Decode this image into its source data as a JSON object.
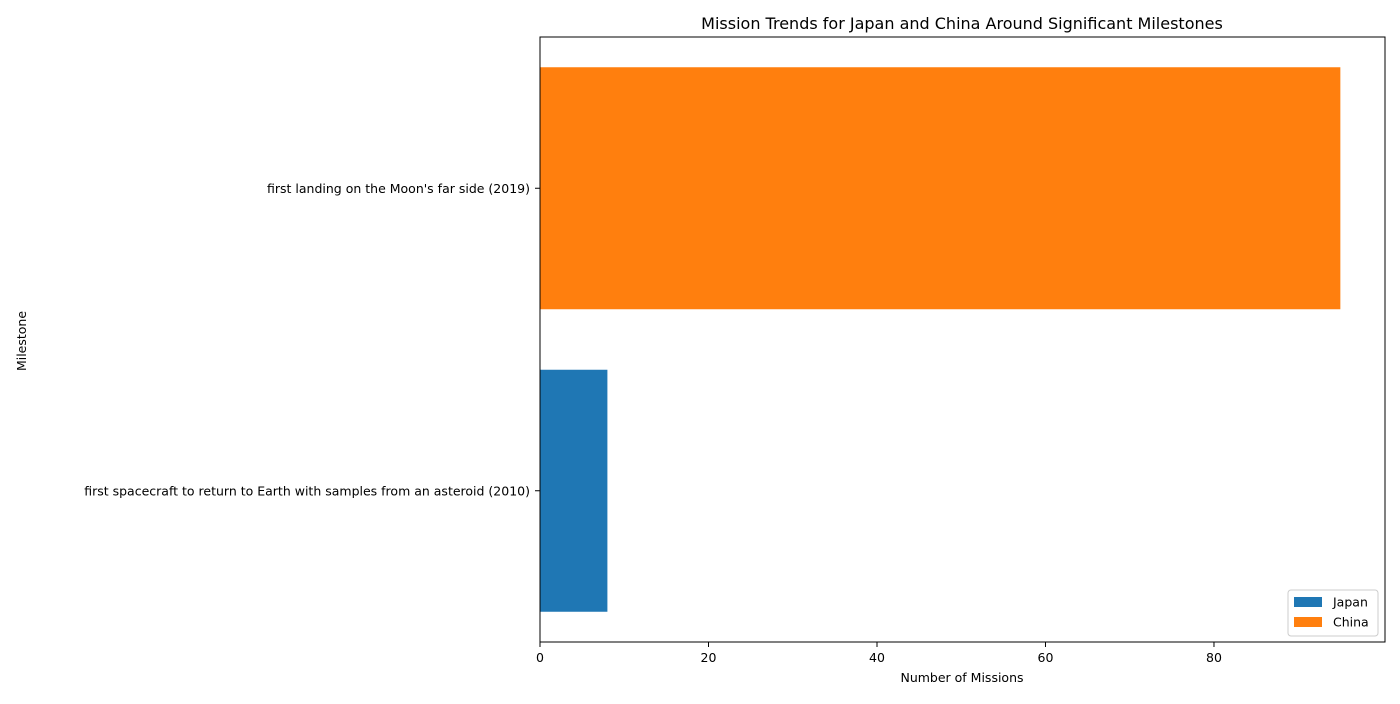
{
  "chart_data": {
    "type": "bar",
    "orientation": "horizontal",
    "title": "Mission Trends for Japan and China Around Significant Milestones",
    "xlabel": "Number of Missions",
    "ylabel": "Milestone",
    "xlim": [
      0,
      100.3
    ],
    "x_ticks": [
      0,
      20,
      40,
      60,
      80
    ],
    "categories": [
      "first spacecraft to return to Earth with samples from an asteroid (2010)",
      "first landing on the Moon's far side (2019)"
    ],
    "series": [
      {
        "name": "Japan",
        "color": "#1f77b4",
        "values": [
          8,
          0
        ]
      },
      {
        "name": "China",
        "color": "#ff7f0e",
        "values": [
          0,
          95
        ]
      }
    ],
    "grid": false,
    "legend_position": "bottom-right"
  }
}
